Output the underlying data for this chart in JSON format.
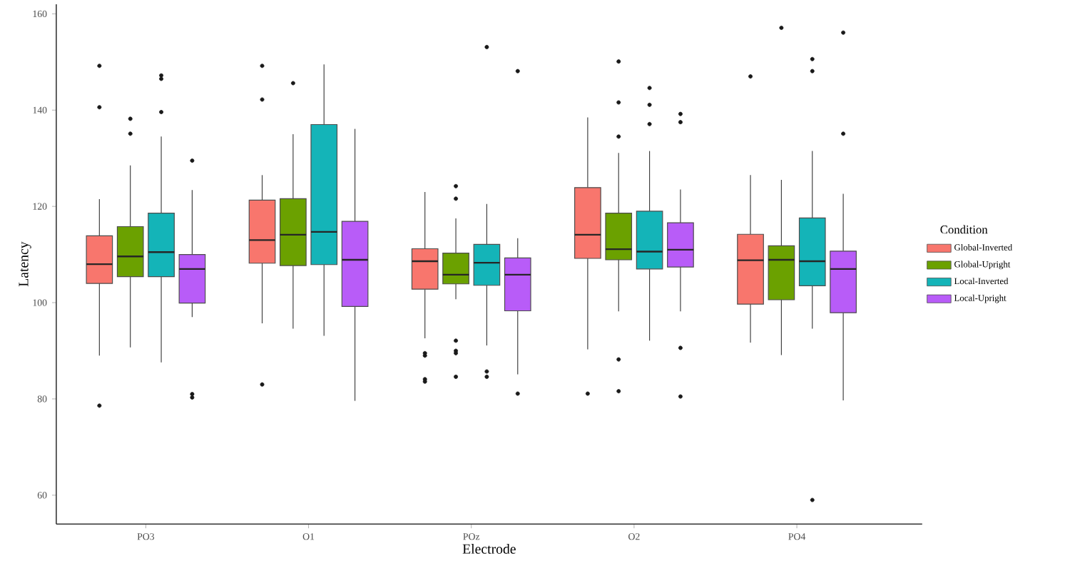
{
  "chart_data": {
    "type": "box",
    "xlabel": "Electrode",
    "ylabel": "Latency",
    "legend_title": "Condition",
    "legend": "right",
    "categories": [
      "PO3",
      "O1",
      "POz",
      "O2",
      "PO4"
    ],
    "ylim": [
      54,
      162
    ],
    "yticks": [
      60,
      80,
      100,
      120,
      140,
      160
    ],
    "series": [
      {
        "name": "Global-Inverted",
        "color": "#f8766d",
        "boxes": [
          {
            "low": 89.0,
            "q1": 104.0,
            "median": 108.0,
            "q3": 113.9,
            "high": 121.5,
            "outliers": [
              149.2,
              140.6,
              78.6
            ]
          },
          {
            "low": 95.7,
            "q1": 108.2,
            "median": 113.0,
            "q3": 121.3,
            "high": 126.5,
            "outliers": [
              149.2,
              142.2,
              83.0
            ]
          },
          {
            "low": 92.6,
            "q1": 102.8,
            "median": 108.6,
            "q3": 111.2,
            "high": 123.0,
            "outliers": [
              89.5,
              89.0,
              84.1,
              83.6
            ]
          },
          {
            "low": 90.3,
            "q1": 109.2,
            "median": 114.1,
            "q3": 123.9,
            "high": 138.5,
            "outliers": [
              81.1
            ]
          },
          {
            "low": 91.7,
            "q1": 99.7,
            "median": 108.8,
            "q3": 114.2,
            "high": 126.5,
            "outliers": [
              147.0
            ]
          }
        ]
      },
      {
        "name": "Global-Upright",
        "color": "#6ba100",
        "boxes": [
          {
            "low": 90.7,
            "q1": 105.4,
            "median": 109.6,
            "q3": 115.8,
            "high": 128.5,
            "outliers": [
              138.2,
              135.1
            ]
          },
          {
            "low": 94.6,
            "q1": 107.7,
            "median": 114.1,
            "q3": 121.6,
            "high": 135.0,
            "outliers": [
              145.6
            ]
          },
          {
            "low": 100.7,
            "q1": 103.9,
            "median": 105.8,
            "q3": 110.3,
            "high": 117.5,
            "outliers": [
              124.2,
              121.6,
              92.1,
              90.0,
              89.5,
              84.6
            ]
          },
          {
            "low": 98.2,
            "q1": 108.9,
            "median": 111.1,
            "q3": 118.6,
            "high": 131.1,
            "outliers": [
              150.1,
              141.6,
              134.5,
              88.2,
              81.6
            ]
          },
          {
            "low": 89.1,
            "q1": 100.6,
            "median": 108.9,
            "q3": 111.8,
            "high": 125.5,
            "outliers": [
              157.1
            ]
          }
        ]
      },
      {
        "name": "Local-Inverted",
        "color": "#14b4b8",
        "boxes": [
          {
            "low": 87.6,
            "q1": 105.4,
            "median": 110.5,
            "q3": 118.6,
            "high": 134.5,
            "outliers": [
              147.2,
              146.5,
              139.6
            ]
          },
          {
            "low": 93.1,
            "q1": 107.9,
            "median": 114.7,
            "q3": 137.0,
            "high": 149.5
          },
          {
            "low": 91.1,
            "q1": 103.6,
            "median": 108.3,
            "q3": 112.1,
            "high": 120.5,
            "outliers": [
              153.1,
              85.7,
              84.6
            ]
          },
          {
            "low": 92.1,
            "q1": 107.0,
            "median": 110.6,
            "q3": 119.0,
            "high": 131.5,
            "outliers": [
              144.6,
              141.1,
              137.1
            ]
          },
          {
            "low": 94.6,
            "q1": 103.5,
            "median": 108.6,
            "q3": 117.6,
            "high": 131.5,
            "outliers": [
              150.6,
              148.1,
              59.0
            ]
          }
        ]
      },
      {
        "name": "Local-Upright",
        "color": "#b85cf8",
        "boxes": [
          {
            "low": 97.0,
            "q1": 99.9,
            "median": 107.0,
            "q3": 110.0,
            "high": 123.4,
            "outliers": [
              129.5,
              81.0,
              80.3
            ]
          },
          {
            "low": 79.6,
            "q1": 99.2,
            "median": 108.9,
            "q3": 116.9,
            "high": 136.1
          },
          {
            "low": 85.1,
            "q1": 98.3,
            "median": 105.8,
            "q3": 109.3,
            "high": 113.4,
            "outliers": [
              148.1,
              81.1
            ]
          },
          {
            "low": 98.2,
            "q1": 107.4,
            "median": 111.0,
            "q3": 116.6,
            "high": 123.5,
            "outliers": [
              139.2,
              137.5,
              90.6,
              80.5
            ]
          },
          {
            "low": 79.7,
            "q1": 97.9,
            "median": 107.0,
            "q3": 110.7,
            "high": 122.6,
            "outliers": [
              156.1,
              135.1
            ]
          }
        ]
      }
    ]
  }
}
